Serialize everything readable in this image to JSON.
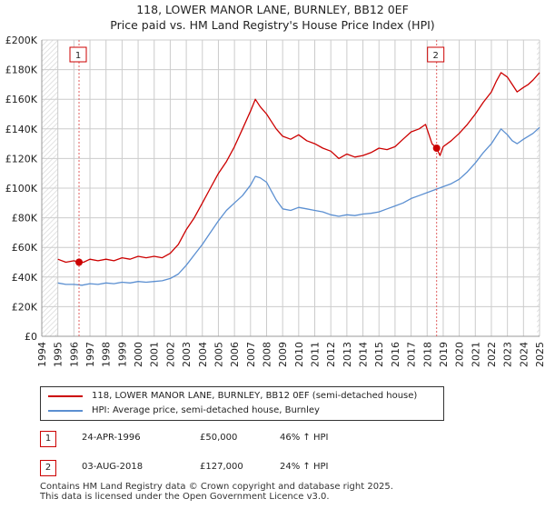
{
  "header": {
    "title_line1": "118, LOWER MANOR LANE, BURNLEY, BB12 0EF",
    "title_line2": "Price paid vs. HM Land Registry's House Price Index (HPI)"
  },
  "colors": {
    "property": "#cc0000",
    "hpi": "#5b8fd1",
    "grid": "#cccccc",
    "hatch": "#d8d8d8",
    "marker_line": "#e06060"
  },
  "chart_data": {
    "type": "line",
    "title": "118, LOWER MANOR LANE, BURNLEY, BB12 0EF — Price paid vs. HM Land Registry's House Price Index (HPI)",
    "xlabel": "",
    "ylabel": "",
    "xlim": [
      1994,
      2025
    ],
    "ylim": [
      0,
      200000
    ],
    "y_ticks": [
      0,
      20000,
      40000,
      60000,
      80000,
      100000,
      120000,
      140000,
      160000,
      180000,
      200000
    ],
    "y_tick_labels": [
      "£0",
      "£20K",
      "£40K",
      "£60K",
      "£80K",
      "£100K",
      "£120K",
      "£140K",
      "£160K",
      "£180K",
      "£200K"
    ],
    "x_ticks": [
      "1994",
      "1995",
      "1996",
      "1997",
      "1998",
      "1999",
      "2000",
      "2001",
      "2002",
      "2003",
      "2004",
      "2005",
      "2006",
      "2007",
      "2008",
      "2009",
      "2010",
      "2011",
      "2012",
      "2013",
      "2014",
      "2015",
      "2016",
      "2017",
      "2018",
      "2019",
      "2020",
      "2021",
      "2022",
      "2023",
      "2024",
      "2025"
    ],
    "grid": true,
    "legend_position": "below",
    "series": [
      {
        "name": "118, LOWER MANOR LANE, BURNLEY, BB12 0EF (semi-detached house)",
        "color": "#cc0000",
        "x": [
          1995.0,
          1995.5,
          1996.0,
          1996.32,
          1996.6,
          1997.0,
          1997.5,
          1998.0,
          1998.5,
          1999.0,
          1999.5,
          2000.0,
          2000.5,
          2001.0,
          2001.5,
          2002.0,
          2002.5,
          2003.0,
          2003.5,
          2004.0,
          2004.5,
          2005.0,
          2005.5,
          2006.0,
          2006.5,
          2007.0,
          2007.3,
          2007.6,
          2008.0,
          2008.3,
          2008.6,
          2009.0,
          2009.5,
          2010.0,
          2010.5,
          2011.0,
          2011.5,
          2012.0,
          2012.5,
          2013.0,
          2013.5,
          2014.0,
          2014.5,
          2015.0,
          2015.5,
          2016.0,
          2016.5,
          2017.0,
          2017.5,
          2017.9,
          2018.3,
          2018.59,
          2018.8,
          2019.0,
          2019.5,
          2020.0,
          2020.5,
          2021.0,
          2021.5,
          2022.0,
          2022.3,
          2022.6,
          2023.0,
          2023.3,
          2023.6,
          2024.0,
          2024.3,
          2024.6,
          2025.0
        ],
        "values": [
          52000,
          50000,
          51000,
          50000,
          50000,
          52000,
          51000,
          52000,
          51000,
          53000,
          52000,
          54000,
          53000,
          54000,
          53000,
          56000,
          62000,
          72000,
          80000,
          90000,
          100000,
          110000,
          118000,
          128000,
          140000,
          152000,
          160000,
          155000,
          150000,
          145000,
          140000,
          135000,
          133000,
          136000,
          132000,
          130000,
          127000,
          125000,
          120000,
          123000,
          121000,
          122000,
          124000,
          127000,
          126000,
          128000,
          133000,
          138000,
          140000,
          143000,
          130000,
          127000,
          122000,
          128000,
          132000,
          137000,
          143000,
          150000,
          158000,
          165000,
          172000,
          178000,
          175000,
          170000,
          165000,
          168000,
          170000,
          173000,
          178000
        ]
      },
      {
        "name": "HPI: Average price, semi-detached house, Burnley",
        "color": "#5b8fd1",
        "x": [
          1995.0,
          1995.5,
          1996.0,
          1996.5,
          1997.0,
          1997.5,
          1998.0,
          1998.5,
          1999.0,
          1999.5,
          2000.0,
          2000.5,
          2001.0,
          2001.5,
          2002.0,
          2002.5,
          2003.0,
          2003.5,
          2004.0,
          2004.5,
          2005.0,
          2005.5,
          2006.0,
          2006.5,
          2007.0,
          2007.3,
          2007.6,
          2008.0,
          2008.3,
          2008.6,
          2009.0,
          2009.5,
          2010.0,
          2010.5,
          2011.0,
          2011.5,
          2012.0,
          2012.5,
          2013.0,
          2013.5,
          2014.0,
          2014.5,
          2015.0,
          2015.5,
          2016.0,
          2016.5,
          2017.0,
          2017.5,
          2018.0,
          2018.5,
          2019.0,
          2019.5,
          2020.0,
          2020.5,
          2021.0,
          2021.5,
          2022.0,
          2022.3,
          2022.6,
          2023.0,
          2023.3,
          2023.6,
          2024.0,
          2024.3,
          2024.6,
          2025.0
        ],
        "values": [
          36000,
          35000,
          35000,
          34500,
          35500,
          35000,
          36000,
          35500,
          36500,
          36000,
          37000,
          36500,
          37000,
          37500,
          39000,
          42000,
          48000,
          55000,
          62000,
          70000,
          78000,
          85000,
          90000,
          95000,
          102000,
          108000,
          107000,
          104000,
          98000,
          92000,
          86000,
          85000,
          87000,
          86000,
          85000,
          84000,
          82000,
          81000,
          82000,
          81500,
          82500,
          83000,
          84000,
          86000,
          88000,
          90000,
          93000,
          95000,
          97000,
          99000,
          101000,
          103000,
          106000,
          111000,
          117000,
          124000,
          130000,
          135000,
          140000,
          136000,
          132000,
          130000,
          133000,
          135000,
          137000,
          141000
        ]
      }
    ],
    "sale_markers": [
      {
        "id": "1",
        "x": 1996.32,
        "value": 50000
      },
      {
        "id": "2",
        "x": 2018.59,
        "value": 127000
      }
    ]
  },
  "legend": {
    "property_label": "118, LOWER MANOR LANE, BURNLEY, BB12 0EF (semi-detached house)",
    "hpi_label": "HPI: Average price, semi-detached house, Burnley"
  },
  "transactions": [
    {
      "id": "1",
      "date": "24-APR-1996",
      "price": "£50,000",
      "hpi_change": "46% ↑ HPI"
    },
    {
      "id": "2",
      "date": "03-AUG-2018",
      "price": "£127,000",
      "hpi_change": "24% ↑ HPI"
    }
  ],
  "footer": {
    "line1": "Contains HM Land Registry data © Crown copyright and database right 2025.",
    "line2": "This data is licensed under the Open Government Licence v3.0."
  }
}
